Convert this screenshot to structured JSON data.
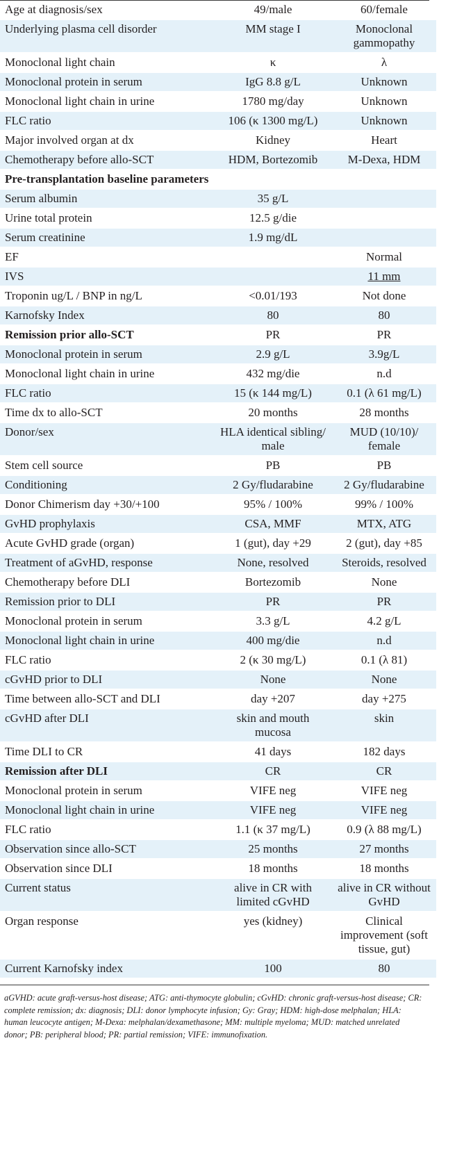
{
  "table": {
    "rows": [
      {
        "label": "Age at diagnosis/sex",
        "p1": "49/male",
        "p2": "60/female",
        "shaded": false
      },
      {
        "label": "Underlying plasma cell disorder",
        "p1": "MM stage I",
        "p2": "Monoclonal gammopathy",
        "shaded": true
      },
      {
        "label": "Monoclonal light chain",
        "p1": "κ",
        "p2": "λ",
        "shaded": false
      },
      {
        "label": "Monoclonal protein in serum",
        "p1": "IgG 8.8 g/L",
        "p2": "Unknown",
        "shaded": true
      },
      {
        "label": "Monoclonal light chain in urine",
        "p1": "1780 mg/day",
        "p2": "Unknown",
        "shaded": false
      },
      {
        "label": "FLC ratio",
        "p1": "106 (κ 1300 mg/L)",
        "p2": "Unknown",
        "shaded": true
      },
      {
        "label": "Major involved organ at dx",
        "p1": "Kidney",
        "p2": "Heart",
        "shaded": false
      },
      {
        "label": "Chemotherapy before allo-SCT",
        "p1": "HDM, Bortezomib",
        "p2": "M-Dexa, HDM",
        "shaded": true
      },
      {
        "label": "Pre-transplantation baseline parameters",
        "p1": "",
        "p2": "",
        "shaded": false,
        "bold": true,
        "span": true
      },
      {
        "label": "Serum albumin",
        "p1": "35 g/L",
        "p2": "",
        "shaded": true
      },
      {
        "label": "Urine total protein",
        "p1": "12.5 g/die",
        "p2": "",
        "shaded": false
      },
      {
        "label": "Serum creatinine",
        "p1": "1.9 mg/dL",
        "p2": "",
        "shaded": true
      },
      {
        "label": "EF",
        "p1": "",
        "p2": "Normal",
        "shaded": false
      },
      {
        "label": "IVS",
        "p1": "",
        "p2": "11 mm",
        "shaded": true,
        "p2_underline": true
      },
      {
        "label": "Troponin ug/L / BNP in ng/L",
        "p1": "<0.01/193",
        "p2": "Not done",
        "shaded": false
      },
      {
        "label": "Karnofsky Index",
        "p1": "80",
        "p2": "80",
        "shaded": true
      },
      {
        "label": "Remission prior allo-SCT",
        "p1": "PR",
        "p2": "PR",
        "shaded": false,
        "bold": true
      },
      {
        "label": "Monoclonal protein in serum",
        "p1": "2.9 g/L",
        "p2": "3.9g/L",
        "shaded": true
      },
      {
        "label": "Monoclonal light chain in urine",
        "p1": "432 mg/die",
        "p2": "n.d",
        "shaded": false
      },
      {
        "label": "FLC ratio",
        "p1": "15 (κ 144 mg/L)",
        "p2": "0.1 (λ 61 mg/L)",
        "shaded": true
      },
      {
        "label": "Time dx to allo-SCT",
        "p1": "20 months",
        "p2": "28 months",
        "shaded": false
      },
      {
        "label": "Donor/sex",
        "p1": "HLA identical sibling/ male",
        "p2": "MUD (10/10)/ female",
        "shaded": true
      },
      {
        "label": "Stem cell source",
        "p1": "PB",
        "p2": "PB",
        "shaded": false
      },
      {
        "label": "Conditioning",
        "p1": "2 Gy/fludarabine",
        "p2": "2 Gy/fludarabine",
        "shaded": true
      },
      {
        "label": "Donor Chimerism day +30/+100",
        "p1": "95% / 100%",
        "p2": "99% / 100%",
        "shaded": false
      },
      {
        "label": "GvHD prophylaxis",
        "p1": "CSA, MMF",
        "p2": "MTX, ATG",
        "shaded": true
      },
      {
        "label": "Acute GvHD grade (organ)",
        "p1": "1 (gut), day +29",
        "p2": "2 (gut), day +85",
        "shaded": false
      },
      {
        "label": "Treatment of aGvHD, response",
        "p1": "None, resolved",
        "p2": "Steroids, resolved",
        "shaded": true
      },
      {
        "label": "Chemotherapy before DLI",
        "p1": "Bortezomib",
        "p2": "None",
        "shaded": false
      },
      {
        "label": "Remission prior to DLI",
        "p1": "PR",
        "p2": "PR",
        "shaded": true
      },
      {
        "label": "Monoclonal protein in serum",
        "p1": "3.3 g/L",
        "p2": "4.2 g/L",
        "shaded": false
      },
      {
        "label": "Monoclonal light chain in urine",
        "p1": "400 mg/die",
        "p2": "n.d",
        "shaded": true
      },
      {
        "label": "FLC ratio",
        "p1": "2 (κ 30 mg/L)",
        "p2": "0.1 (λ 81)",
        "shaded": false
      },
      {
        "label": "cGvHD prior to DLI",
        "p1": "None",
        "p2": "None",
        "shaded": true
      },
      {
        "label": "Time between allo-SCT and DLI",
        "p1": "day +207",
        "p2": "day +275",
        "shaded": false
      },
      {
        "label": "cGvHD after DLI",
        "p1": "skin and mouth mucosa",
        "p2": "skin",
        "shaded": true
      },
      {
        "label": "Time DLI to CR",
        "p1": "41 days",
        "p2": "182 days",
        "shaded": false
      },
      {
        "label": "Remission after DLI",
        "p1": "CR",
        "p2": "CR",
        "shaded": true,
        "bold": true
      },
      {
        "label": "Monoclonal protein in serum",
        "p1": "VIFE neg",
        "p2": "VIFE neg",
        "shaded": false
      },
      {
        "label": "Monoclonal light chain in urine",
        "p1": "VIFE neg",
        "p2": "VIFE neg",
        "shaded": true
      },
      {
        "label": "FLC ratio",
        "p1": "1.1 (κ 37 mg/L)",
        "p2": "0.9 (λ 88 mg/L)",
        "shaded": false
      },
      {
        "label": "Observation since allo-SCT",
        "p1": "25 months",
        "p2": "27 months",
        "shaded": true
      },
      {
        "label": "Observation since DLI",
        "p1": "18 months",
        "p2": "18 months",
        "shaded": false
      },
      {
        "label": "Current status",
        "p1": "alive in CR with limited cGvHD",
        "p2": "alive in CR without GvHD",
        "shaded": true
      },
      {
        "label": "Organ response",
        "p1": "yes (kidney)",
        "p2": "Clinical improvement (soft tissue, gut)",
        "shaded": false
      },
      {
        "label": "Current Karnofsky index",
        "p1": "100",
        "p2": "80",
        "shaded": true
      }
    ]
  },
  "footnote": "aGVHD: acute graft-versus-host disease; ATG: anti-thymocyte globulin; cGvHD: chronic graft-versus-host disease; CR: complete remission; dx: diagnosis; DLI: donor lymphocyte infusion; Gy: Gray; HDM: high-dose melphalan; HLA: human leucocyte antigen; M-Dexa: melphalan/dexamethasone; MM: multiple myeloma; MUD: matched unrelated donor; PB: peripheral blood; PR: partial remission; VIFE: immunofixation."
}
